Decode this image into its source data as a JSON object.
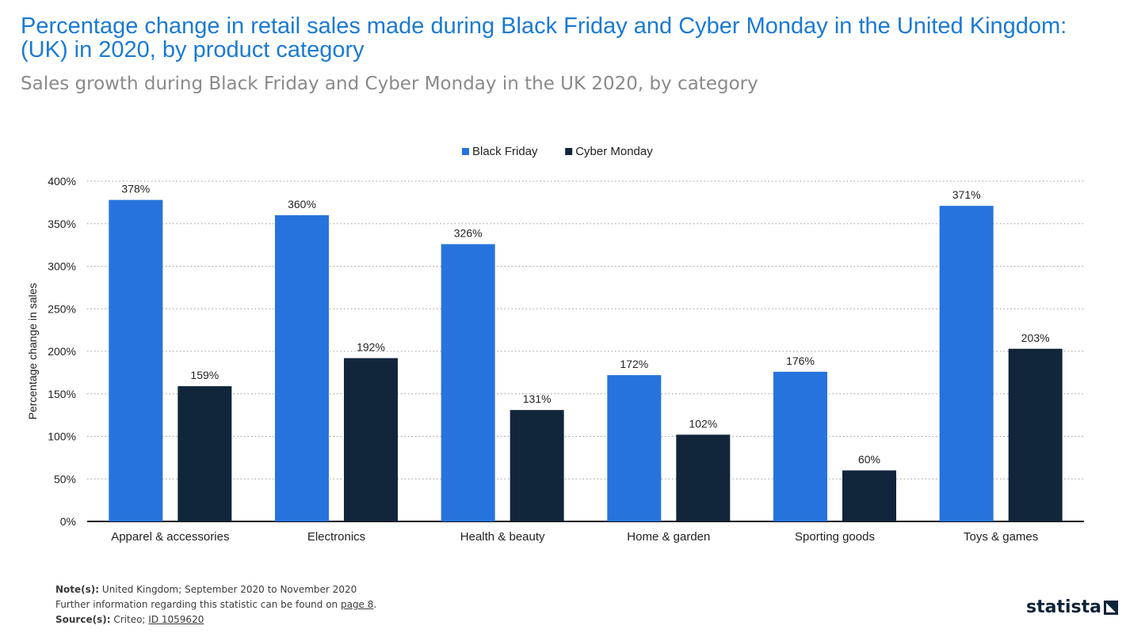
{
  "header": {
    "title": "Percentage change in retail sales made during Black Friday and Cyber Monday in the United Kingdom: (UK) in 2020, by product category",
    "subtitle": "Sales growth during Black Friday and Cyber Monday in the UK 2020, by category"
  },
  "chart_data": {
    "type": "bar",
    "categories": [
      "Apparel & accessories",
      "Electronics",
      "Health & beauty",
      "Home & garden",
      "Sporting goods",
      "Toys & games"
    ],
    "series": [
      {
        "name": "Black Friday",
        "color": "#2673dd",
        "values": [
          378,
          360,
          326,
          172,
          176,
          371
        ]
      },
      {
        "name": "Cyber Monday",
        "color": "#11263b",
        "values": [
          159,
          192,
          131,
          102,
          60,
          203
        ]
      }
    ],
    "ylabel": "Percentage change in sales",
    "ylim": [
      0,
      400
    ],
    "yticks": [
      0,
      50,
      100,
      150,
      200,
      250,
      300,
      350,
      400
    ],
    "value_suffix": "%",
    "grid": true,
    "legend_position": "top-center"
  },
  "footer": {
    "notes_label": "Note(s):",
    "notes_text": "United Kingdom; September 2020 to November 2020",
    "further_info_text": "Further information regarding this statistic can be found on",
    "further_info_link": "page 8",
    "source_label": "Source(s):",
    "source_text": "Criteo;",
    "source_id": "ID 1059620"
  },
  "brand": {
    "name": "statista",
    "logo_icon": "statista-arrow-icon"
  }
}
